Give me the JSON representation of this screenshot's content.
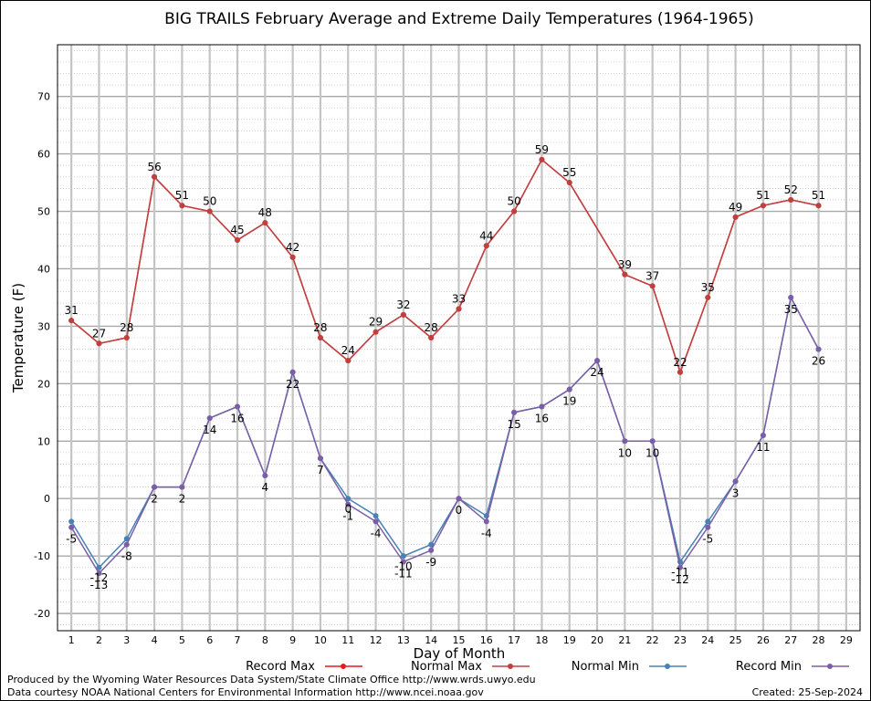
{
  "chart_data": {
    "type": "line",
    "title": "BIG TRAILS February Average and Extreme Daily Temperatures (1964-1965)",
    "xlabel": "Day of Month",
    "ylabel": "Temperature (F)",
    "xlim": [
      0.5,
      29.5
    ],
    "ylim": [
      -23,
      79
    ],
    "x_ticks": [
      1,
      2,
      3,
      4,
      5,
      6,
      7,
      8,
      9,
      10,
      11,
      12,
      13,
      14,
      15,
      16,
      17,
      18,
      19,
      20,
      21,
      22,
      23,
      24,
      25,
      26,
      27,
      28,
      29
    ],
    "y_ticks": [
      -20,
      -10,
      0,
      10,
      20,
      30,
      40,
      50,
      60,
      70
    ],
    "grid": true,
    "legend_position": "bottom",
    "series": [
      {
        "name": "Record Max",
        "color": "#e41a1c",
        "x": [
          1,
          2,
          3,
          4,
          5,
          6,
          7,
          8,
          9,
          10,
          11,
          12,
          13,
          14,
          15,
          16,
          17,
          18,
          19,
          21,
          22,
          23,
          24,
          25,
          26,
          27,
          28
        ],
        "values": [
          31,
          27,
          28,
          56,
          51,
          50,
          45,
          48,
          42,
          28,
          24,
          29,
          32,
          28,
          33,
          44,
          50,
          59,
          55,
          39,
          37,
          22,
          35,
          49,
          51,
          52,
          51
        ],
        "labels": [
          "31",
          "27",
          "28",
          "56",
          "51",
          "50",
          "45",
          "48",
          "42",
          "28",
          "24",
          "29",
          "32",
          "28",
          "33",
          "44",
          "50",
          "59",
          "55",
          "39",
          "37",
          "22",
          "35",
          "49",
          "51",
          "52",
          "51"
        ]
      },
      {
        "name": "Normal Max",
        "color": "#c04040",
        "x": [
          1,
          2,
          3,
          4,
          5,
          6,
          7,
          8,
          9,
          10,
          11,
          12,
          13,
          14,
          15,
          16,
          17,
          18,
          19,
          21,
          22,
          23,
          24,
          25,
          26,
          27,
          28
        ],
        "values": [
          31,
          27,
          28,
          56,
          51,
          50,
          45,
          48,
          42,
          28,
          24,
          29,
          32,
          28,
          33,
          44,
          50,
          59,
          55,
          39,
          37,
          22,
          35,
          49,
          51,
          52,
          51
        ],
        "labels": []
      },
      {
        "name": "Normal Min",
        "color": "#4682b4",
        "x": [
          1,
          2,
          3,
          4,
          5,
          6,
          7,
          8,
          9,
          10,
          11,
          12,
          13,
          14,
          15,
          16,
          17,
          18,
          19,
          20,
          21,
          22,
          23,
          24,
          25,
          26,
          27,
          28
        ],
        "values": [
          -4,
          -12,
          -7,
          2,
          2,
          14,
          16,
          4,
          22,
          7,
          0,
          -3,
          -10,
          -8,
          0,
          -3,
          15,
          16,
          19,
          24,
          10,
          10,
          -11,
          -4,
          3,
          11,
          35,
          26
        ],
        "labels": []
      },
      {
        "name": "Record Min",
        "color": "#7b5ea7",
        "x": [
          1,
          2,
          3,
          4,
          5,
          6,
          7,
          8,
          9,
          10,
          11,
          12,
          13,
          14,
          15,
          16,
          17,
          18,
          19,
          20,
          21,
          22,
          23,
          24,
          25,
          26,
          27,
          28
        ],
        "values": [
          -5,
          -13,
          -8,
          2,
          2,
          14,
          16,
          4,
          22,
          7,
          -1,
          -4,
          -11,
          -9,
          0,
          -4,
          15,
          16,
          19,
          24,
          10,
          10,
          -12,
          -5,
          3,
          11,
          35,
          26
        ],
        "labels": [
          "-5",
          "-13",
          "-8",
          "2",
          "2",
          "14",
          "16",
          "4",
          "22",
          "7",
          "-1",
          "-4",
          "-11",
          "-9",
          "0",
          "-4",
          "15",
          "16",
          "19",
          "24",
          "10",
          "10",
          "-12",
          "-5",
          "3",
          "11",
          "35",
          "26"
        ],
        "extra_labels": [
          {
            "x": 2,
            "text": "-12"
          },
          {
            "x": 11,
            "text": "0"
          },
          {
            "x": 13,
            "text": "-10"
          },
          {
            "x": 23,
            "text": "-11"
          }
        ]
      }
    ]
  },
  "footer": {
    "credit_line1": "Produced by the Wyoming Water Resources Data System/State Climate Office http://www.wrds.uwyo.edu",
    "credit_line2": "Data courtesy NOAA National Centers for Environmental Information http://www.ncei.noaa.gov",
    "created": "Created:  25-Sep-2024"
  }
}
